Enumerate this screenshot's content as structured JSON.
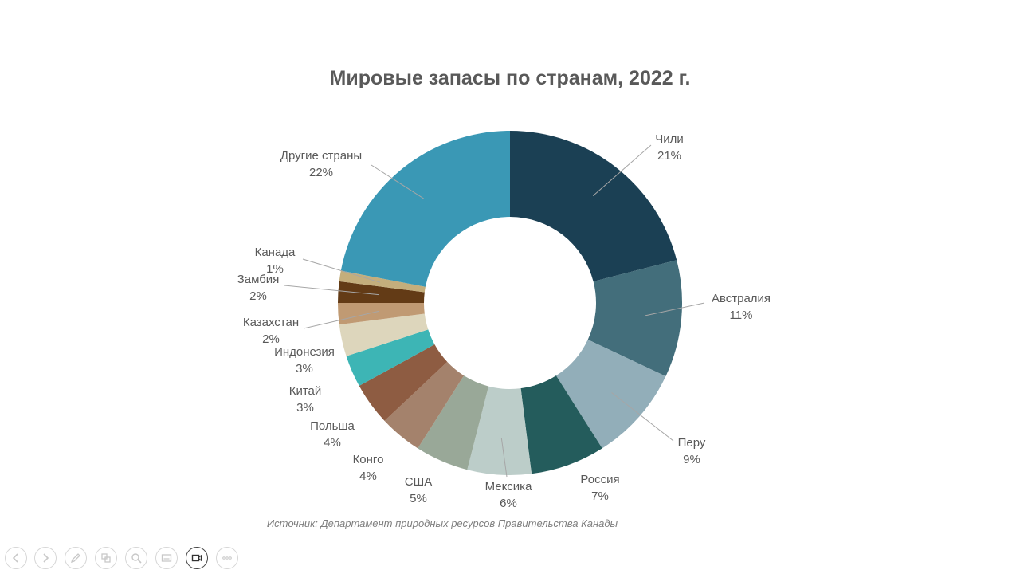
{
  "title": "Мировые запасы по странам, 2022 г.",
  "source": "Источник: Департамент природных ресурсов Правительства Канады",
  "chart_data": {
    "type": "pie",
    "hole": true,
    "title": "Мировые запасы по странам, 2022 г.",
    "categories": [
      "Чили",
      "Австралия",
      "Перу",
      "Россия",
      "Мексика",
      "США",
      "Конго",
      "Польша",
      "Китай",
      "Индонезия",
      "Казахстан",
      "Замбия",
      "Канада",
      "Другие страны"
    ],
    "values": [
      21,
      11,
      9,
      7,
      6,
      5,
      4,
      4,
      3,
      3,
      2,
      2,
      1,
      22
    ],
    "labels": [
      "21%",
      "11%",
      "9%",
      "7%",
      "6%",
      "5%",
      "4%",
      "4%",
      "3%",
      "3%",
      "2%",
      "2%",
      "1%",
      "22%"
    ],
    "colors": [
      "#1b4054",
      "#436e7b",
      "#92aeb9",
      "#245c5c",
      "#bccdc9",
      "#99a898",
      "#a4826c",
      "#8e5c42",
      "#3db5b5",
      "#ddd6bc",
      "#c09a73",
      "#633b16",
      "#c4ae7c",
      "#3a98b5"
    ]
  },
  "toolbar": {
    "icons": [
      "prev-icon",
      "next-icon",
      "pen-icon",
      "slides-icon",
      "zoom-icon",
      "subtitles-icon",
      "camera-icon",
      "more-icon"
    ]
  }
}
